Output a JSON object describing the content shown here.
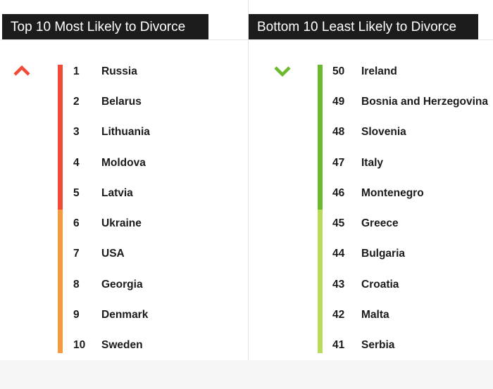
{
  "colors": {
    "up_strong": "#f24a35",
    "up_light": "#f79a3e",
    "down_strong": "#6cb92d",
    "down_light": "#b8dc5a"
  },
  "left": {
    "title": "Top 10 Most Likely to Divorce",
    "arrow_icon": "chevron-up-icon",
    "items": [
      {
        "rank": "1",
        "country": "Russia"
      },
      {
        "rank": "2",
        "country": "Belarus"
      },
      {
        "rank": "3",
        "country": "Lithuania"
      },
      {
        "rank": "4",
        "country": "Moldova"
      },
      {
        "rank": "5",
        "country": "Latvia"
      },
      {
        "rank": "6",
        "country": "Ukraine"
      },
      {
        "rank": "7",
        "country": "USA"
      },
      {
        "rank": "8",
        "country": "Georgia"
      },
      {
        "rank": "9",
        "country": "Denmark"
      },
      {
        "rank": "10",
        "country": "Sweden"
      }
    ]
  },
  "right": {
    "title": "Bottom 10 Least Likely to Divorce",
    "arrow_icon": "chevron-down-icon",
    "items": [
      {
        "rank": "50",
        "country": "Ireland"
      },
      {
        "rank": "49",
        "country": "Bosnia and Herzegovina"
      },
      {
        "rank": "48",
        "country": "Slovenia"
      },
      {
        "rank": "47",
        "country": "Italy"
      },
      {
        "rank": "46",
        "country": "Montenegro"
      },
      {
        "rank": "45",
        "country": "Greece"
      },
      {
        "rank": "44",
        "country": "Bulgaria"
      },
      {
        "rank": "43",
        "country": "Croatia"
      },
      {
        "rank": "42",
        "country": "Malta"
      },
      {
        "rank": "41",
        "country": "Serbia"
      }
    ]
  }
}
